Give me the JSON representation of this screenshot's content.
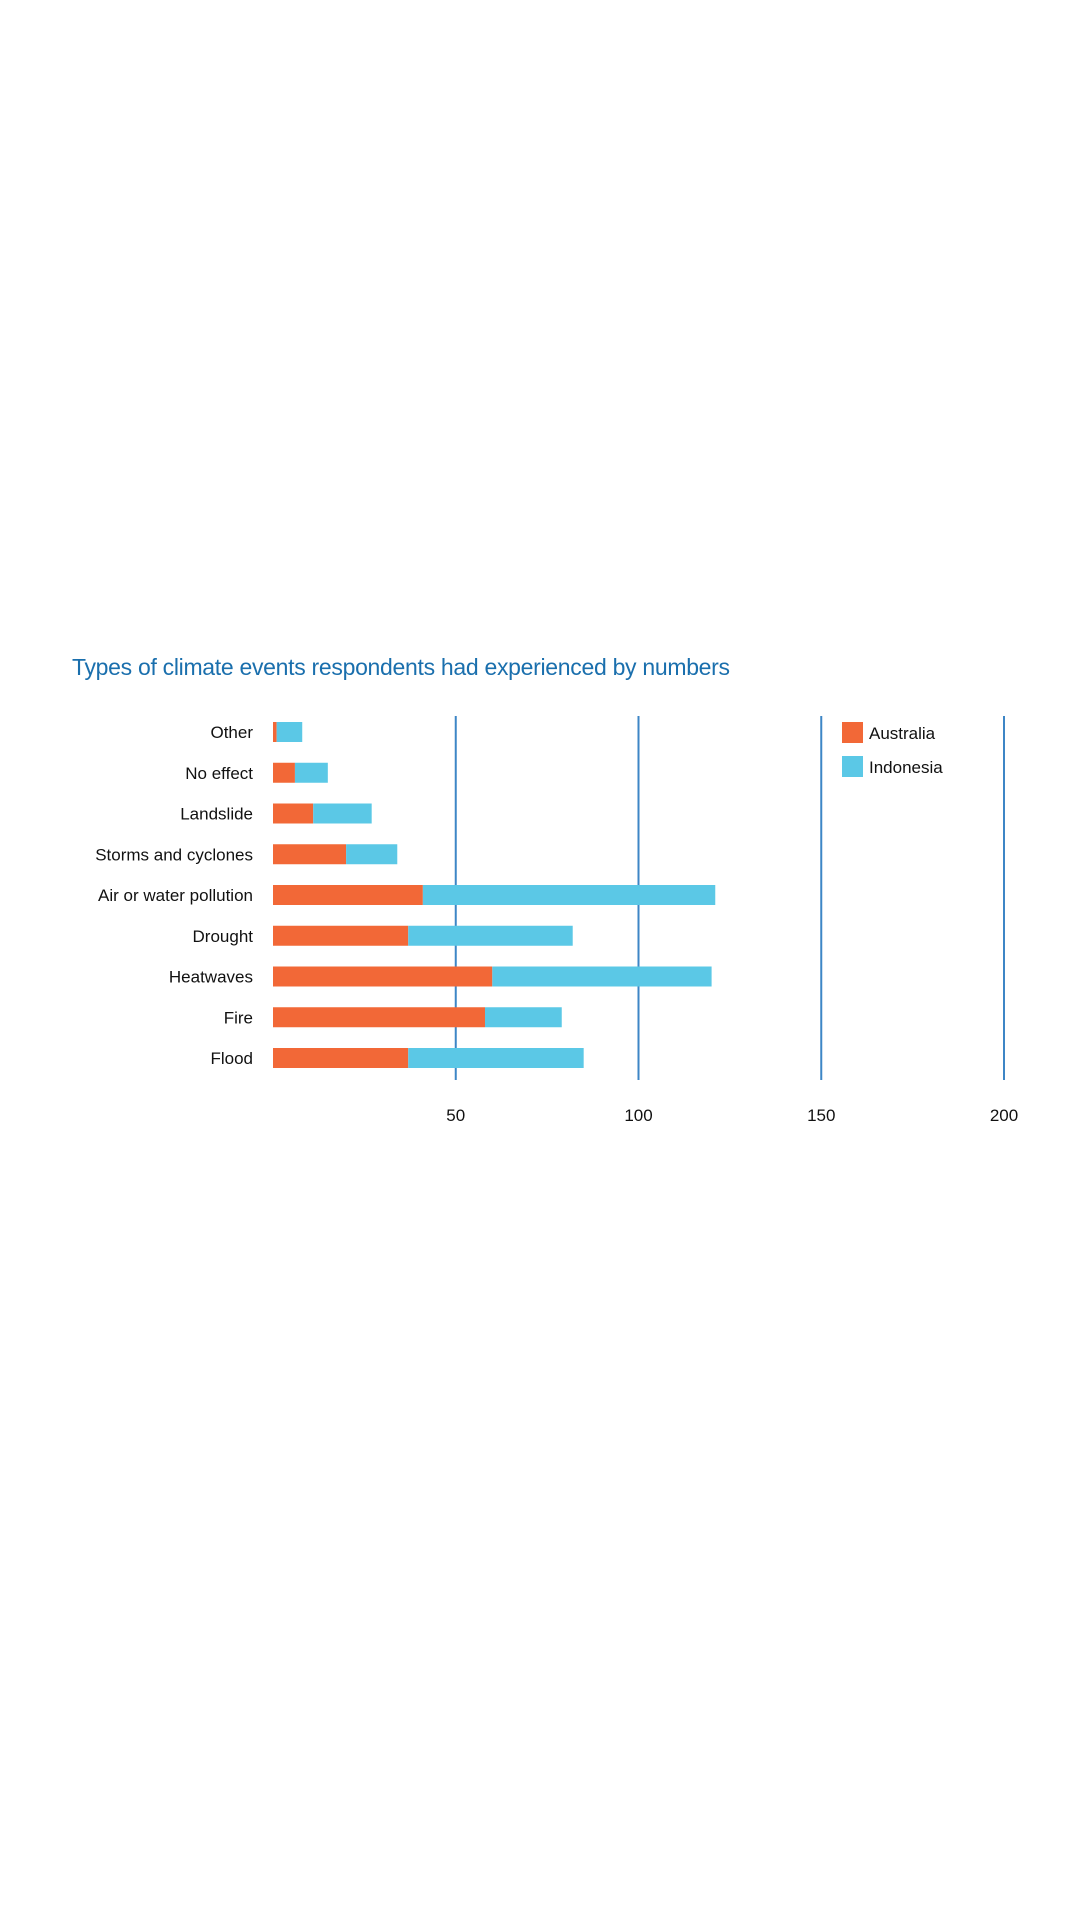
{
  "chart_data": {
    "type": "bar",
    "orientation": "horizontal",
    "stacked": true,
    "title": "Types of climate events respondents had experienced by numbers",
    "categories": [
      "Other",
      "No effect",
      "Landslide",
      "Storms and cyclones",
      "Air or water pollution",
      "Drought",
      "Heatwaves",
      "Fire",
      "Flood"
    ],
    "series": [
      {
        "name": "Australia",
        "color": "#f26837",
        "values": [
          1,
          6,
          11,
          20,
          41,
          37,
          60,
          58,
          37
        ]
      },
      {
        "name": "Indonesia",
        "color": "#5bc8e6",
        "values": [
          7,
          9,
          16,
          14,
          80,
          45,
          60,
          21,
          48
        ]
      }
    ],
    "xticks": [
      50,
      100,
      150,
      200
    ],
    "xlim": [
      0,
      200
    ],
    "grid": true,
    "gridline_color": "#3d86c6",
    "legend_position": "top-right"
  }
}
